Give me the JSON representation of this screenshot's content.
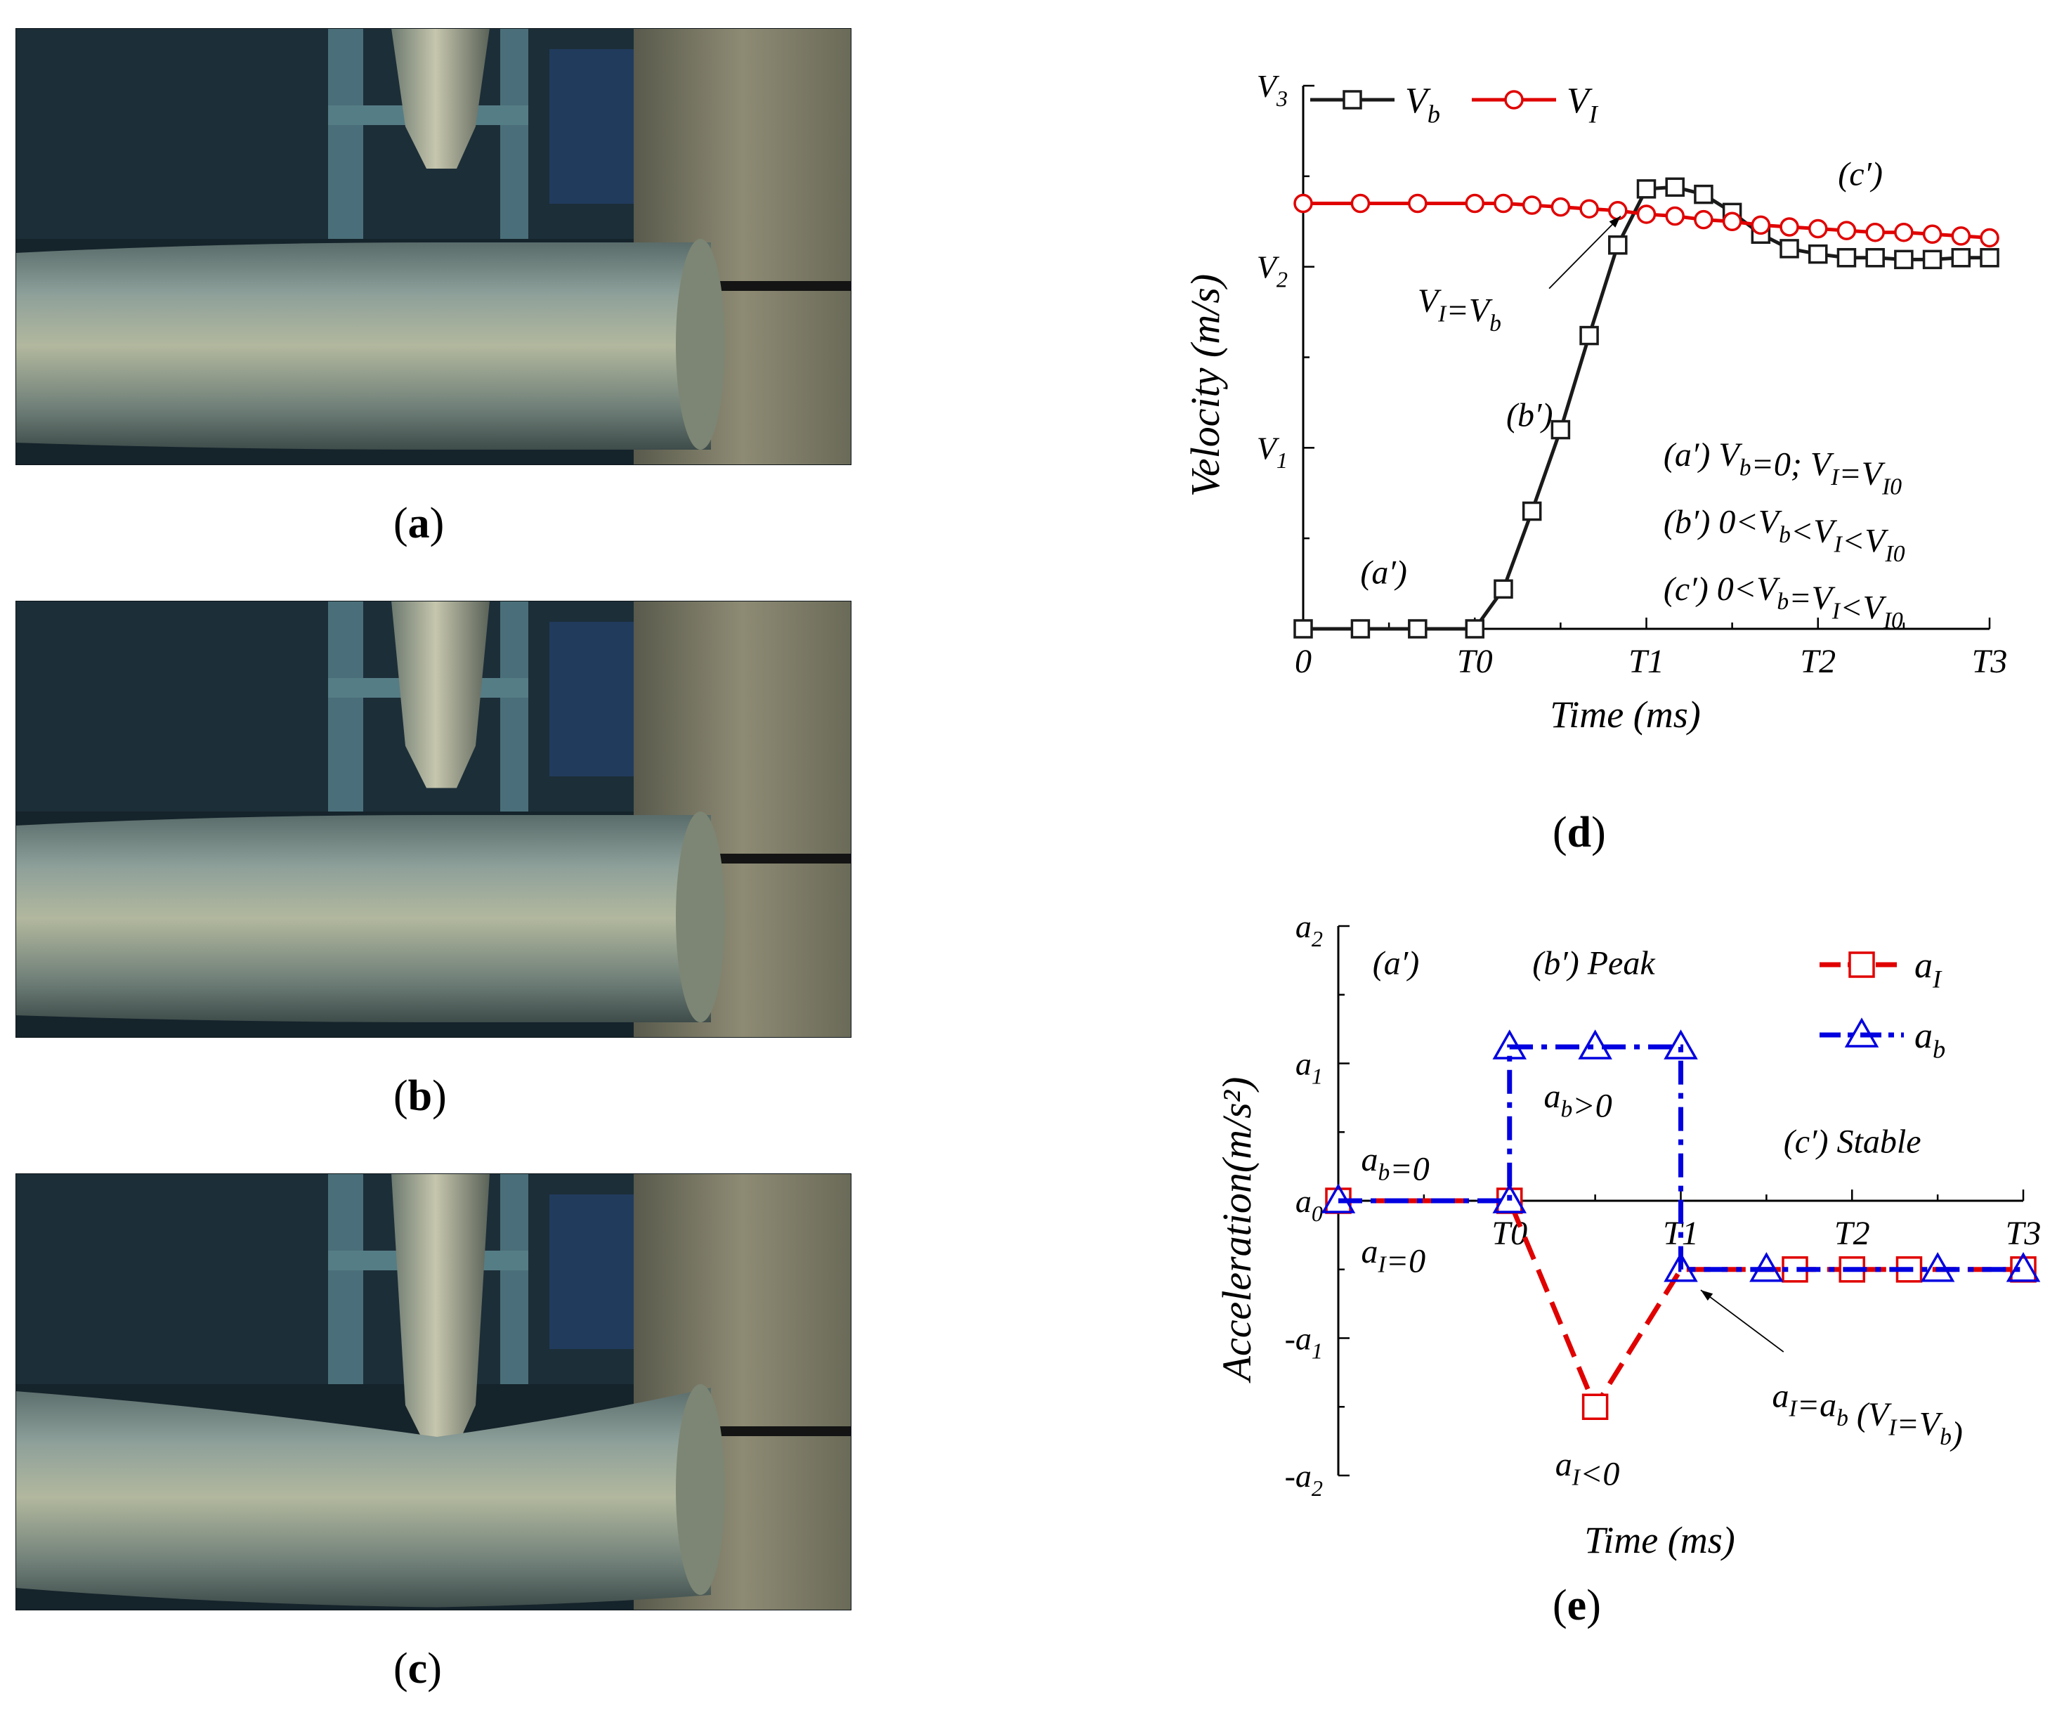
{
  "panels": {
    "a": {
      "open": "(",
      "letter": "a",
      "close": ")"
    },
    "b": {
      "open": "(",
      "letter": "b",
      "close": ")"
    },
    "c": {
      "open": "(",
      "letter": "c",
      "close": ")"
    },
    "d": {
      "open": "(",
      "letter": "d",
      "close": ")"
    },
    "e": {
      "open": "(",
      "letter": "e",
      "close": ")"
    }
  },
  "photos": [
    {
      "stage": "a",
      "indenter_depth": 0.0,
      "tube_bend": 0.0
    },
    {
      "stage": "b",
      "indenter_depth": 0.35,
      "tube_bend": 0.0
    },
    {
      "stage": "c",
      "indenter_depth": 1.0,
      "tube_bend": 1.0
    }
  ],
  "colors": {
    "black_series": "#1a1a1a",
    "red_series": "#e00000",
    "blue_series": "#0000e0"
  },
  "chart_data": [
    {
      "id": "d",
      "type": "line",
      "xlabel": "Time (ms)",
      "ylabel": "Velocity (m/s)",
      "x_ticks": [
        "0",
        "T0",
        "T1",
        "T2",
        "T3"
      ],
      "x_tick_values": [
        0,
        3,
        6,
        9,
        12
      ],
      "y_ticks": [
        "V1",
        "V2",
        "V3"
      ],
      "y_tick_values": [
        1,
        2,
        3
      ],
      "xlim": [
        0,
        12
      ],
      "ylim": [
        0,
        3
      ],
      "legend": "top-left",
      "series": [
        {
          "name": "Vb",
          "name_main": "V",
          "name_sub": "b",
          "marker": "square",
          "color": "#1a1a1a",
          "x": [
            0,
            1,
            2,
            3,
            3.5,
            4,
            4.5,
            5,
            5.5,
            6,
            6.5,
            7,
            7.5,
            8,
            8.5,
            9,
            9.5,
            10,
            10.5,
            11,
            11.5,
            12
          ],
          "y": [
            0,
            0,
            0,
            0,
            0.22,
            0.65,
            1.1,
            1.62,
            2.12,
            2.43,
            2.44,
            2.4,
            2.3,
            2.18,
            2.1,
            2.07,
            2.05,
            2.05,
            2.04,
            2.04,
            2.05,
            2.05
          ]
        },
        {
          "name": "VI",
          "name_main": "V",
          "name_sub": "I",
          "marker": "circle",
          "color": "#e00000",
          "x": [
            0,
            1,
            2,
            3,
            3.5,
            4,
            4.5,
            5,
            5.5,
            6,
            6.5,
            7,
            7.5,
            8,
            8.5,
            9,
            9.5,
            10,
            10.5,
            11,
            11.5,
            12
          ],
          "y": [
            2.35,
            2.35,
            2.35,
            2.35,
            2.35,
            2.34,
            2.33,
            2.32,
            2.31,
            2.29,
            2.28,
            2.26,
            2.25,
            2.23,
            2.22,
            2.21,
            2.2,
            2.19,
            2.19,
            2.18,
            2.17,
            2.16
          ]
        }
      ],
      "annotations": [
        {
          "lines": [
            [
              {
                "t": "(a′)"
              }
            ]
          ],
          "at": [
            1.0,
            0.25
          ]
        },
        {
          "lines": [
            [
              {
                "t": "(b′)"
              }
            ]
          ],
          "at": [
            3.55,
            1.12
          ]
        },
        {
          "lines": [
            [
              {
                "t": "(c′)"
              }
            ]
          ],
          "at": [
            9.35,
            2.45
          ]
        },
        {
          "lines": [
            [
              {
                "t": "(a′) V"
              },
              {
                "t": "b",
                "sub": true
              },
              {
                "t": "=0; V"
              },
              {
                "t": "I",
                "sub": true
              },
              {
                "t": "=V"
              },
              {
                "t": "I0",
                "sub": true
              }
            ]
          ],
          "at": [
            6.3,
            0.9
          ]
        },
        {
          "lines": [
            [
              {
                "t": "(b′) 0<V"
              },
              {
                "t": "b",
                "sub": true
              },
              {
                "t": "<V"
              },
              {
                "t": "I",
                "sub": true
              },
              {
                "t": "<V"
              },
              {
                "t": "I0",
                "sub": true
              }
            ]
          ],
          "at": [
            6.3,
            0.53
          ]
        },
        {
          "lines": [
            [
              {
                "t": "(c′) 0<V"
              },
              {
                "t": "b",
                "sub": true
              },
              {
                "t": "=V"
              },
              {
                "t": "I",
                "sub": true
              },
              {
                "t": "<V"
              },
              {
                "t": "I0",
                "sub": true
              }
            ]
          ],
          "at": [
            6.3,
            0.16
          ]
        }
      ],
      "arrow": {
        "label": [
          {
            "t": "V"
          },
          {
            "t": "I",
            "sub": true
          },
          {
            "t": "=V"
          },
          {
            "t": "b",
            "sub": true
          }
        ],
        "label_at": [
          2.0,
          1.75
        ],
        "from": [
          4.3,
          1.88
        ],
        "to": [
          5.55,
          2.28
        ]
      }
    },
    {
      "id": "e",
      "type": "line",
      "xlabel": "Time (ms)",
      "ylabel": "Acceleration(m/s²)",
      "x_ticks": [
        "T0",
        "T1",
        "T2",
        "T3"
      ],
      "x_tick_values": [
        3,
        6,
        9,
        12
      ],
      "y_ticks": [
        "-a2",
        "-a1",
        "a0",
        "a1",
        "a2"
      ],
      "y_tick_values": [
        -2,
        -1,
        0,
        1,
        2
      ],
      "xlim": [
        0,
        12
      ],
      "ylim": [
        -2,
        2
      ],
      "legend": "top-right",
      "series": [
        {
          "name": "aI",
          "name_main": "a",
          "name_sub": "I",
          "marker": "square",
          "color": "#e00000",
          "dash": "dash",
          "x": [
            0,
            3,
            4.5,
            6,
            8,
            9,
            10,
            12
          ],
          "y": [
            0,
            0,
            -1.5,
            -0.5,
            -0.5,
            -0.5,
            -0.5,
            -0.5
          ],
          "marker_x": [
            0,
            3,
            4.5,
            8,
            9,
            10,
            12
          ]
        },
        {
          "name": "ab",
          "name_main": "a",
          "name_sub": "b",
          "marker": "triangle",
          "color": "#0000e0",
          "dash": "dashdot",
          "x": [
            0,
            3,
            3,
            4.5,
            6,
            6,
            7.5,
            10.5,
            12
          ],
          "y": [
            0,
            0,
            1.12,
            1.12,
            1.12,
            -0.5,
            -0.5,
            -0.5,
            -0.5
          ],
          "marker_x_y": [
            [
              0,
              0
            ],
            [
              3,
              0
            ],
            [
              3,
              1.12
            ],
            [
              4.5,
              1.12
            ],
            [
              6,
              1.12
            ],
            [
              6,
              -0.5
            ],
            [
              7.5,
              -0.5
            ],
            [
              10.5,
              -0.5
            ],
            [
              12,
              -0.5
            ]
          ]
        }
      ],
      "annotations": [
        {
          "lines": [
            [
              {
                "t": "(a′)"
              }
            ]
          ],
          "at": [
            0.6,
            1.65
          ]
        },
        {
          "lines": [
            [
              {
                "t": "(b′) Peak"
              }
            ]
          ],
          "at": [
            3.4,
            1.65
          ]
        },
        {
          "lines": [
            [
              {
                "t": "a"
              },
              {
                "t": "b",
                "sub": true
              },
              {
                "t": ">0"
              }
            ]
          ],
          "at": [
            3.6,
            0.68
          ]
        },
        {
          "lines": [
            [
              {
                "t": "(c′) Stable"
              }
            ]
          ],
          "at": [
            7.8,
            0.35
          ]
        },
        {
          "lines": [
            [
              {
                "t": "a"
              },
              {
                "t": "b",
                "sub": true
              },
              {
                "t": "=0"
              }
            ]
          ],
          "at": [
            0.4,
            0.22
          ]
        },
        {
          "lines": [
            [
              {
                "t": "a"
              },
              {
                "t": "I",
                "sub": true
              },
              {
                "t": "=0"
              }
            ]
          ],
          "at": [
            0.4,
            -0.45
          ]
        },
        {
          "lines": [
            [
              {
                "t": "a"
              },
              {
                "t": "I",
                "sub": true
              },
              {
                "t": "<0"
              }
            ]
          ],
          "at": [
            3.8,
            -2.0
          ]
        },
        {
          "lines": [
            [
              {
                "t": "a"
              },
              {
                "t": "I",
                "sub": true
              },
              {
                "t": "=a"
              },
              {
                "t": "b",
                "sub": true
              },
              {
                "t": " (V"
              },
              {
                "t": "I",
                "sub": true
              },
              {
                "t": "=V"
              },
              {
                "t": "b",
                "sub": true
              },
              {
                "t": ")"
              }
            ]
          ],
          "at": [
            7.6,
            -1.5
          ]
        }
      ],
      "arrow": {
        "from": [
          7.8,
          -1.1
        ],
        "to": [
          6.35,
          -0.65
        ]
      }
    }
  ]
}
